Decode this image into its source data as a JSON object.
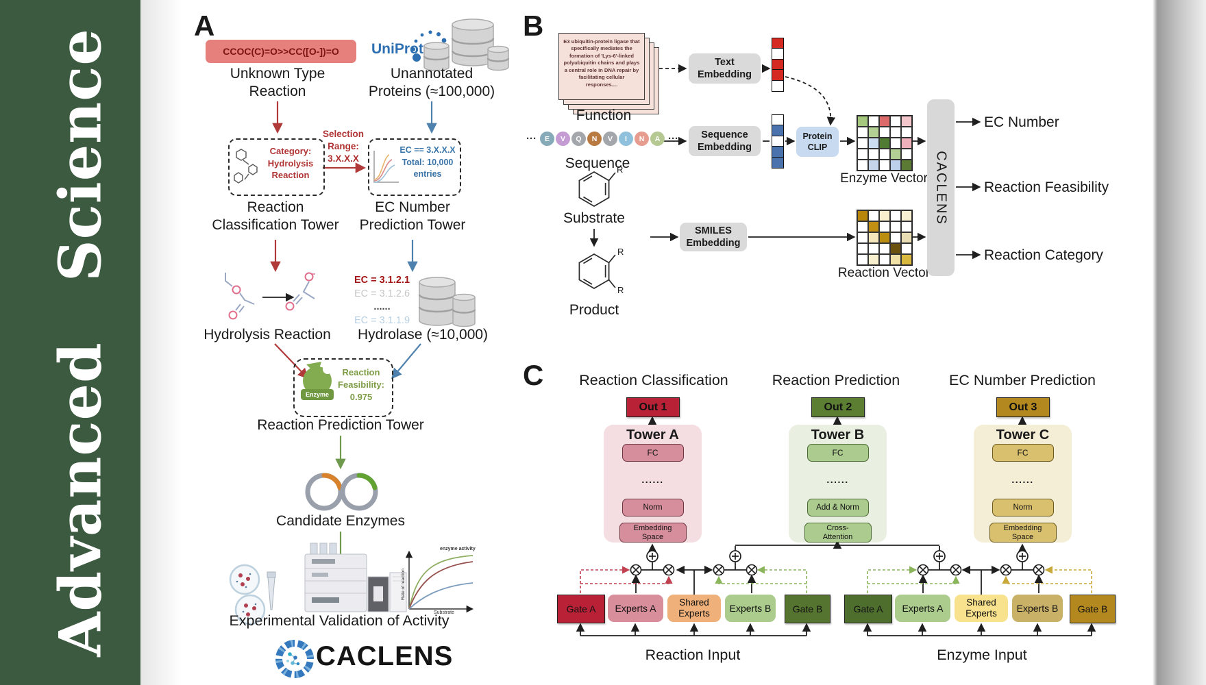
{
  "journal": {
    "name": "Advanced  Science"
  },
  "colors": {
    "spine_green": "#3c5a40",
    "accent_red": "#b03a3a",
    "accent_blue": "#4e81ad",
    "accent_green": "#6f9a4d",
    "uniprot_blue": "#2d6fb0",
    "out1": "#b82136",
    "out2": "#5c7e33",
    "out3": "#b3891f"
  },
  "panelA": {
    "label": "A",
    "smiles": "CCOC(C)=O>>CC([O-])=O",
    "unknown_reaction": "Unknown Type\nReaction",
    "uniprot": "UniProt",
    "unannotated": "Unannotated\nProteins (≈100,000)",
    "category": "Category:\nHydrolysis\nReaction",
    "selection": "Selection\nRange:\n3.X.X.X",
    "ec_range": "EC == 3.X.X.X\nTotal: 10,000\nentries",
    "tower1": "Reaction\nClassification Tower",
    "tower2": "EC Number\nPrediction Tower",
    "ec_list": [
      {
        "text": "EC = 3.1.2.1",
        "color": "#a31515",
        "bold": true
      },
      {
        "text": "EC = 3.1.2.6",
        "color": "#c6c6c6",
        "bold": false
      },
      {
        "text": "......",
        "color": "#444444",
        "bold": true
      },
      {
        "text": "EC = 3.1.1.9",
        "color": "#b7cfe3",
        "bold": false
      }
    ],
    "hydrolysis": "Hydrolysis Reaction",
    "hydrolase": "Hydrolase (≈10,000)",
    "enzyme_label": "Enzyme",
    "feasibility": "Reaction\nFeasibility:\n0.975",
    "tower3": "Reaction Prediction Tower",
    "candidates": "Candidate Enzymes",
    "validation": "Experimental Validation of Activity",
    "brand": "CACLENS",
    "graph": {
      "ylabel": "Rate of reaction",
      "xlabel": "Substrate",
      "annotation": "enzyme activity"
    }
  },
  "panelB": {
    "label": "B",
    "function_card": "E3 ubiquitin-protein ligase that specifically mediates the formation of 'Lys-6'-linked polyubiquitin chains and plays a central role in DNA repair by facilitating cellular responses....",
    "function": "Function",
    "sequence": {
      "pre": "···",
      "post": "···",
      "letters": [
        "E",
        "V",
        "Q",
        "N",
        "V",
        "I",
        "N",
        "A"
      ],
      "colors": [
        "#86aab8",
        "#c59bd4",
        "#a3a7ab",
        "#b97a42",
        "#a3a7ab",
        "#8fc1dc",
        "#e69c8f",
        "#b6c993"
      ]
    },
    "sequence_label": "Sequence",
    "substrate": "Substrate",
    "product": "Product",
    "r_group": "R",
    "text_embedding": "Text\nEmbedding",
    "sequence_embedding": "Sequence\nEmbedding",
    "smiles_embedding": "SMILES\nEmbedding",
    "protein_clip": "Protein\nCLIP",
    "enzyme_vector_label": "Enzyme Vector",
    "reaction_vector_label": "Reaction Vector",
    "caclens": "CACLENS",
    "outputs": [
      "EC Number",
      "Reaction Feasibility",
      "Reaction Category"
    ],
    "text_vector": [
      "#d42a22",
      "#ffffff",
      "#d42a22",
      "#d42a22",
      "#ffffff"
    ],
    "seq_vector": [
      "#ffffff",
      "#4a73ae",
      "#ffffff",
      "#4a73ae",
      "#4a73ae"
    ],
    "enzyme_grid": [
      [
        "#a6c87e",
        "#ffffff",
        "#dd6a6a",
        "#ffffff",
        "#f3c6cb"
      ],
      [
        "#ffffff",
        "#b2d094",
        "#ffffff",
        "#ffffff",
        "#ffffff"
      ],
      [
        "#ffffff",
        "#ccdcf0",
        "#4f7b32",
        "#ffffff",
        "#eeb0ba"
      ],
      [
        "#ffffff",
        "#ffffff",
        "#ffffff",
        "#b2d094",
        "#ffffff"
      ],
      [
        "#ffffff",
        "#c5d4ea",
        "#ffffff",
        "#bcd0ec",
        "#5b7a33"
      ]
    ],
    "reaction_grid": [
      [
        "#b8860b",
        "#ffffff",
        "#f7efcd",
        "#ffffff",
        "#f8f1d4"
      ],
      [
        "#ffffff",
        "#c18f12",
        "#ffffff",
        "#ffffff",
        "#ffffff"
      ],
      [
        "#ffffff",
        "#f3e7bb",
        "#bb8d10",
        "#ffffff",
        "#e9ddb3"
      ],
      [
        "#ffffff",
        "#ffffff",
        "#ffffff",
        "#6b520e",
        "#ffffff"
      ],
      [
        "#ffffff",
        "#f7efcd",
        "#ffffff",
        "#f0e2a6",
        "#d9b83f"
      ]
    ]
  },
  "panelC": {
    "label": "C",
    "columns": [
      "Reaction Classification",
      "Reaction Prediction",
      "EC Number Prediction"
    ],
    "towers": [
      {
        "name": "Tower A",
        "out": "Out 1",
        "fc": "FC",
        "dots": "......",
        "mid": "Norm",
        "bottom": "Embedding\nSpace"
      },
      {
        "name": "Tower B",
        "out": "Out 2",
        "fc": "FC",
        "dots": "......",
        "mid": "Add & Norm",
        "bottom": "Cross-\nAttention"
      },
      {
        "name": "Tower C",
        "out": "Out 3",
        "fc": "FC",
        "dots": "......",
        "mid": "Norm",
        "bottom": "Embedding\nSpace"
      }
    ],
    "groups": [
      {
        "label": "Reaction Input",
        "gate_a": "Gate A",
        "experts_a": "Experts A",
        "shared": "Shared\nExperts",
        "experts_b": "Experts B",
        "gate_b": "Gate B"
      },
      {
        "label": "Enzyme Input",
        "gate_a": "Gate A",
        "experts_a": "Experts A",
        "shared": "Shared\nExperts",
        "experts_b": "Experts B",
        "gate_b": "Gate B"
      }
    ]
  }
}
